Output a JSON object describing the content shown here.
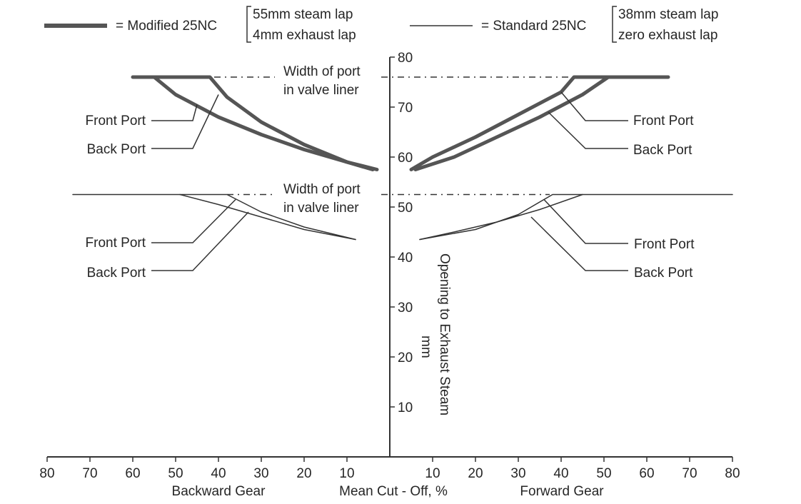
{
  "chart_data": {
    "type": "line",
    "legend": [
      {
        "symbol": "thick",
        "label": "= Modified 25NC",
        "details": [
          "55mm steam lap",
          "4mm exhaust lap"
        ]
      },
      {
        "symbol": "thin",
        "label": "= Standard 25NC",
        "details": [
          "38mm steam lap",
          "zero exhaust lap"
        ]
      }
    ],
    "x_axis": {
      "range": [
        -80,
        80
      ],
      "ticks": [
        -80,
        -70,
        -60,
        -50,
        -40,
        -30,
        -20,
        -10,
        10,
        20,
        30,
        40,
        50,
        60,
        70,
        80
      ],
      "labels": {
        "left": "Backward Gear",
        "center": "Mean Cut - Off, %",
        "right": "Forward Gear"
      }
    },
    "y_axis": {
      "range": [
        0,
        80
      ],
      "ticks": [
        10,
        20,
        30,
        40,
        50,
        60,
        70,
        80
      ],
      "label_line1": "Opening to Exhaust Steam",
      "label_line2": "mm"
    },
    "port_width": {
      "modified": 76,
      "standard": 52.5,
      "label_line1": "Width of port",
      "label_line2": "in valve liner"
    },
    "series": [
      {
        "name": "Modified backward front port",
        "style": "thick",
        "points": [
          [
            -60,
            76
          ],
          [
            -42,
            76
          ],
          [
            -38,
            72
          ],
          [
            -30,
            67
          ],
          [
            -20,
            62.5
          ],
          [
            -10,
            59
          ],
          [
            -3,
            57.5
          ]
        ]
      },
      {
        "name": "Modified backward back port",
        "style": "thick",
        "points": [
          [
            -55,
            76
          ],
          [
            -50,
            72.5
          ],
          [
            -40,
            68
          ],
          [
            -30,
            64.5
          ],
          [
            -20,
            61.5
          ],
          [
            -10,
            59
          ],
          [
            -4,
            57.5
          ]
        ]
      },
      {
        "name": "Modified forward front port",
        "style": "thick",
        "points": [
          [
            65,
            76
          ],
          [
            43,
            76
          ],
          [
            40,
            73
          ],
          [
            30,
            68.5
          ],
          [
            20,
            64
          ],
          [
            10,
            60
          ],
          [
            5,
            57.5
          ]
        ]
      },
      {
        "name": "Modified forward back port",
        "style": "thick",
        "points": [
          [
            51,
            76
          ],
          [
            45,
            72.5
          ],
          [
            35,
            68
          ],
          [
            25,
            64
          ],
          [
            15,
            60
          ],
          [
            6,
            57.5
          ]
        ]
      },
      {
        "name": "Standard backward front port",
        "style": "thin",
        "points": [
          [
            -74,
            52.5
          ],
          [
            -38,
            52.5
          ],
          [
            -30,
            49
          ],
          [
            -20,
            46
          ],
          [
            -8,
            43.5
          ]
        ]
      },
      {
        "name": "Standard backward back port",
        "style": "thin",
        "points": [
          [
            -49,
            52.5
          ],
          [
            -40,
            50.5
          ],
          [
            -30,
            48
          ],
          [
            -20,
            45.5
          ],
          [
            -8,
            43.5
          ]
        ]
      },
      {
        "name": "Standard forward front port",
        "style": "thin",
        "points": [
          [
            80,
            52.5
          ],
          [
            38,
            52.5
          ],
          [
            30,
            48.5
          ],
          [
            20,
            45.5
          ],
          [
            7,
            43.5
          ]
        ]
      },
      {
        "name": "Standard forward back port",
        "style": "thin",
        "points": [
          [
            45,
            52.5
          ],
          [
            35,
            49.5
          ],
          [
            25,
            47
          ],
          [
            15,
            45
          ],
          [
            7,
            43.5
          ]
        ]
      }
    ],
    "annotations": [
      {
        "text": "Front Port",
        "side": "left",
        "group": "modified",
        "target": [
          -45,
          70.5
        ]
      },
      {
        "text": "Back Port",
        "side": "left",
        "group": "modified",
        "target": [
          -40,
          72.5
        ]
      },
      {
        "text": "Front Port",
        "side": "right",
        "group": "modified",
        "target": [
          40,
          73
        ]
      },
      {
        "text": "Back Port",
        "side": "right",
        "group": "modified",
        "target": [
          37,
          69
        ]
      },
      {
        "text": "Front Port",
        "side": "left",
        "group": "standard",
        "target": [
          -36,
          51.5
        ]
      },
      {
        "text": "Back Port",
        "side": "left",
        "group": "standard",
        "target": [
          -33,
          49
        ]
      },
      {
        "text": "Front Port",
        "side": "right",
        "group": "standard",
        "target": [
          36,
          51.5
        ]
      },
      {
        "text": "Back Port",
        "side": "right",
        "group": "standard",
        "target": [
          33,
          48
        ]
      }
    ]
  }
}
